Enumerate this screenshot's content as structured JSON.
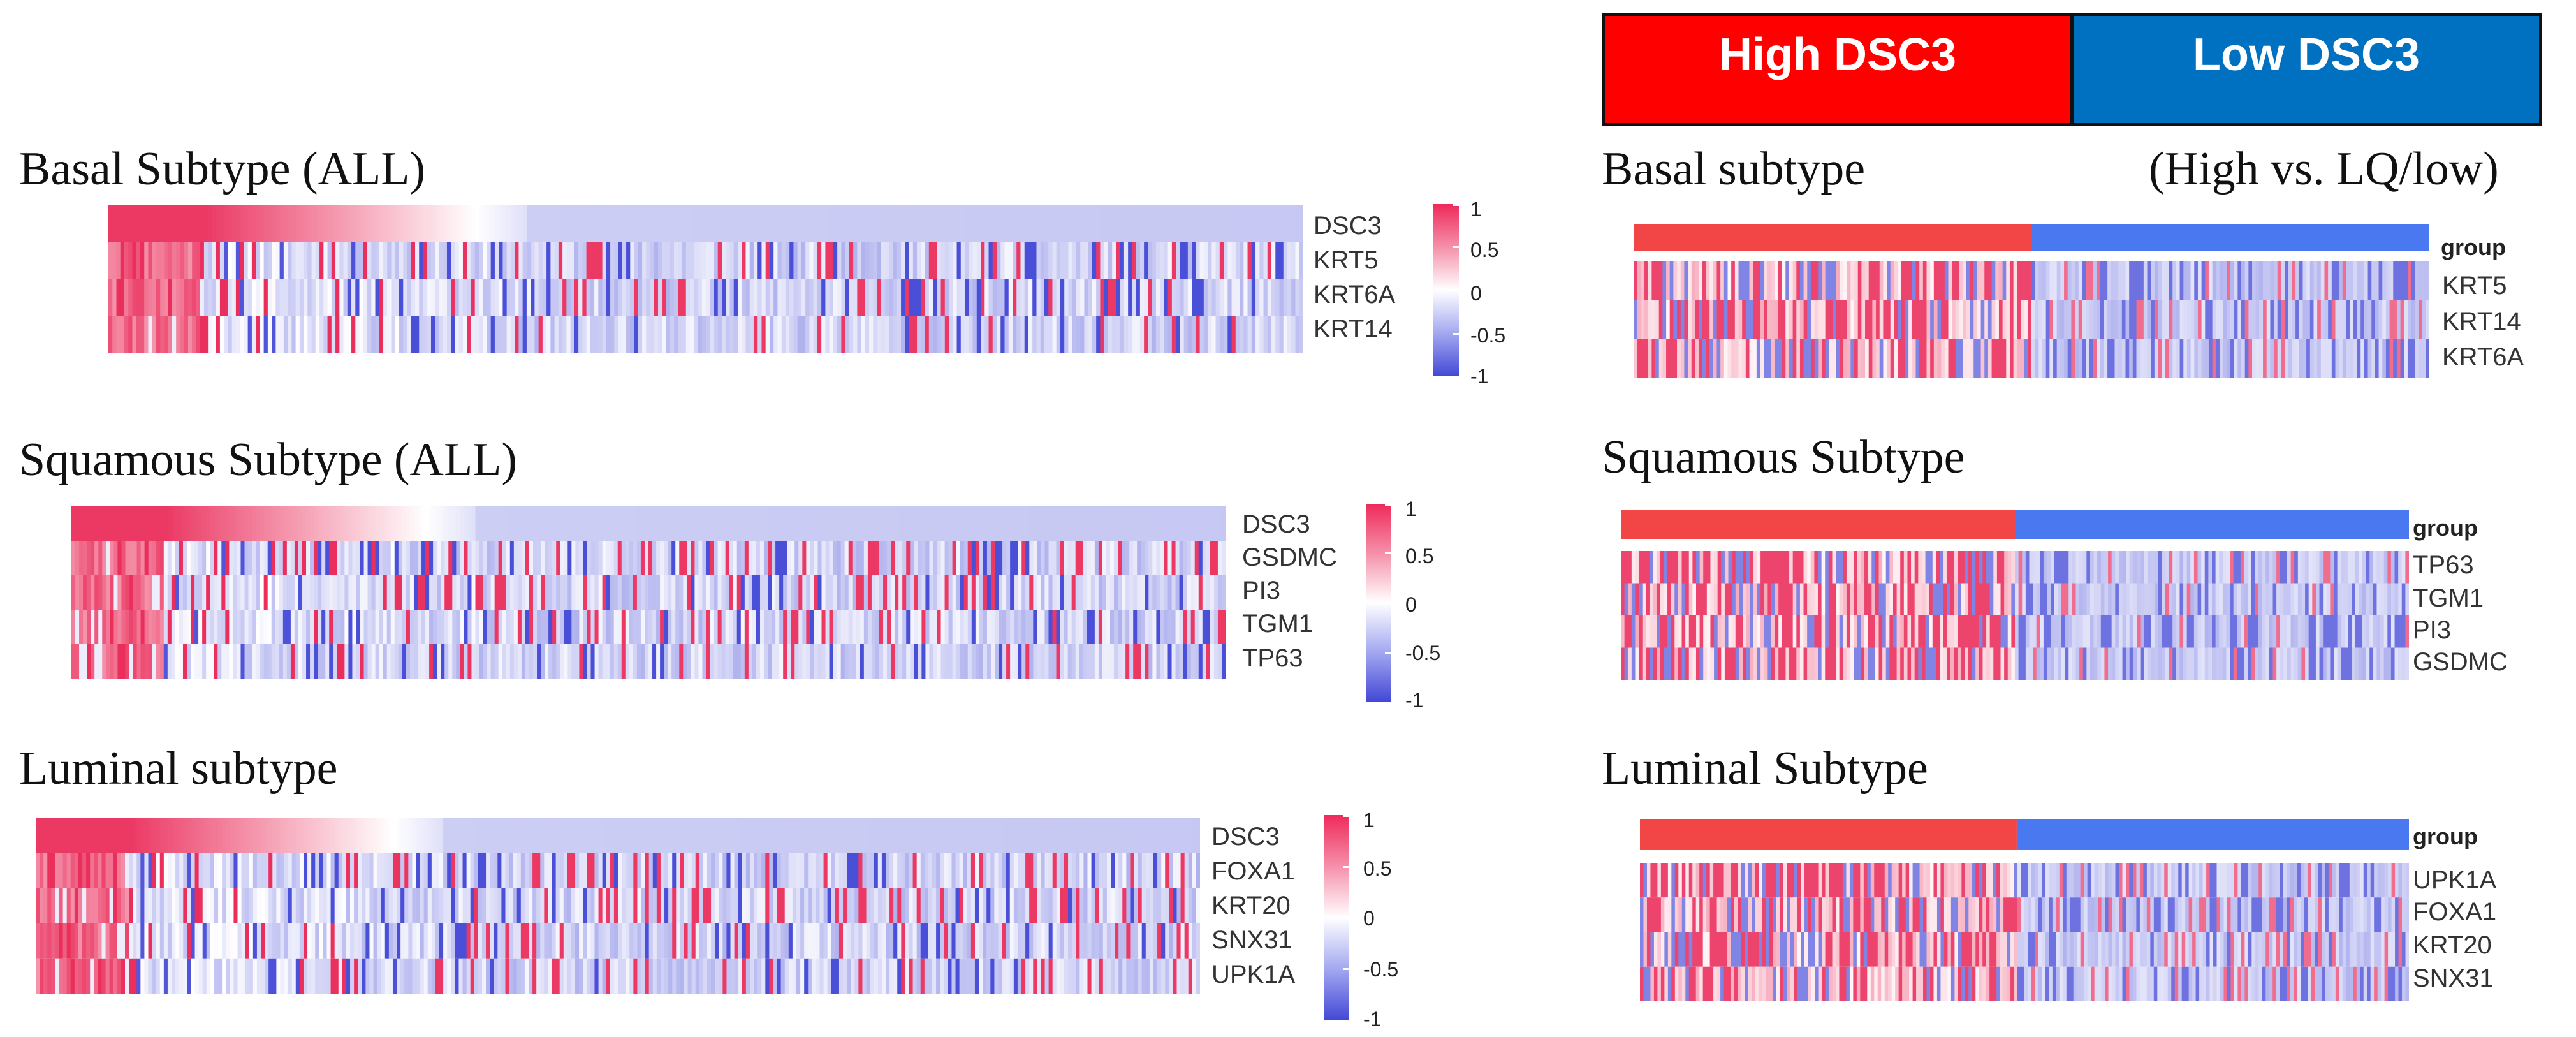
{
  "legend": {
    "high_label": "High DSC3",
    "low_label": "Low DSC3",
    "high_color": "#ff0000",
    "low_color": "#0070c0"
  },
  "colors": {
    "high": "#ea2f5c",
    "mid": "#ffffff",
    "low": "#4a4fd8",
    "group_high": "#f24646",
    "group_low": "#4a78f0"
  },
  "colorbar": {
    "ticks": [
      "1",
      "0.5",
      "0",
      "-0.5",
      "-1"
    ]
  },
  "group_label": "group",
  "left_panels": [
    {
      "title": "Basal Subtype (ALL)",
      "genes": [
        "DSC3",
        "KRT5",
        "KRT6A",
        "KRT14"
      ]
    },
    {
      "title": "Squamous Subtype (ALL)",
      "genes": [
        "DSC3",
        "GSDMC",
        "PI3",
        "TGM1",
        "TP63"
      ]
    },
    {
      "title": "Luminal subtype",
      "genes": [
        "DSC3",
        "FOXA1",
        "KRT20",
        "SNX31",
        "UPK1A"
      ]
    }
  ],
  "right_panels": [
    {
      "title": "Basal subtype",
      "subtitle": "(High vs. LQ/low)",
      "genes": [
        "KRT5",
        "KRT14",
        "KRT6A"
      ]
    },
    {
      "title": "Squamous Subtype",
      "genes": [
        "TP63",
        "TGM1",
        "PI3",
        "GSDMC"
      ]
    },
    {
      "title": "Luminal Subtype",
      "genes": [
        "UPK1A",
        "FOXA1",
        "KRT20",
        "SNX31"
      ]
    }
  ],
  "chart_data": [
    {
      "type": "heatmap",
      "title": "Basal Subtype (ALL)",
      "rows": [
        "DSC3",
        "KRT5",
        "KRT6A",
        "KRT14"
      ],
      "value_range": [
        -1,
        1
      ],
      "sort_by": "DSC3",
      "note": "samples sorted by DSC3 expression, high to low"
    },
    {
      "type": "heatmap",
      "title": "Squamous Subtype (ALL)",
      "rows": [
        "DSC3",
        "GSDMC",
        "PI3",
        "TGM1",
        "TP63"
      ],
      "value_range": [
        -1,
        1
      ],
      "sort_by": "DSC3"
    },
    {
      "type": "heatmap",
      "title": "Luminal subtype",
      "rows": [
        "DSC3",
        "FOXA1",
        "KRT20",
        "SNX31",
        "UPK1A"
      ],
      "value_range": [
        -1,
        1
      ],
      "sort_by": "DSC3"
    },
    {
      "type": "heatmap",
      "title": "Basal subtype",
      "subtitle": "(High vs. LQ/low)",
      "annotation_row": "group",
      "groups": [
        "High DSC3",
        "Low DSC3"
      ],
      "group_split": 0.5,
      "rows": [
        "KRT5",
        "KRT14",
        "KRT6A"
      ]
    },
    {
      "type": "heatmap",
      "title": "Squamous Subtype",
      "annotation_row": "group",
      "groups": [
        "High DSC3",
        "Low DSC3"
      ],
      "group_split": 0.5,
      "rows": [
        "TP63",
        "TGM1",
        "PI3",
        "GSDMC"
      ]
    },
    {
      "type": "heatmap",
      "title": "Luminal Subtype",
      "annotation_row": "group",
      "groups": [
        "High DSC3",
        "Low DSC3"
      ],
      "group_split": 0.49,
      "rows": [
        "UPK1A",
        "FOXA1",
        "KRT20",
        "SNX31"
      ]
    }
  ]
}
